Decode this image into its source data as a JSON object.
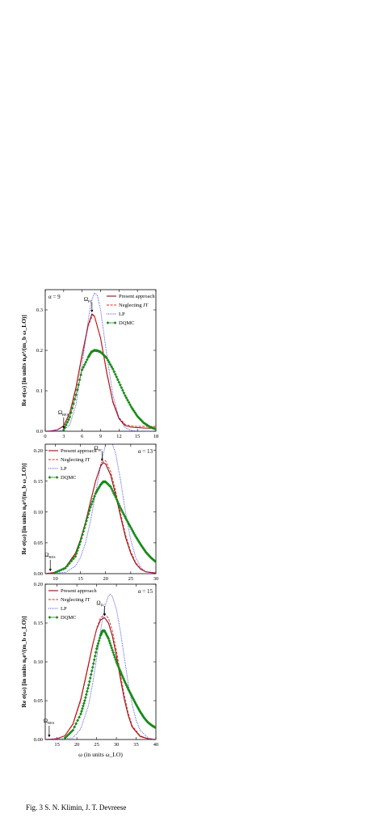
{
  "caption": "Fig. 3    S. N. Klimin, J. T. Devreese",
  "xlabel_shared": "ω (in units ω_LO)",
  "ylabel_shared": "Re σ(ω) [in units n₀e²/(m_b ω_LO)]",
  "legend_labels": [
    "Present approach",
    "Neglecting JT",
    "LP",
    "DQMC"
  ],
  "colors": {
    "present": "#8b0f14",
    "neglecting": "#e8241c",
    "lp": "#2b2be0",
    "dqmc": "#178a17"
  },
  "chart_data": [
    {
      "type": "line",
      "annotation": "α = 9",
      "xlim": [
        0,
        18
      ],
      "ylim": [
        0,
        0.35
      ],
      "xticks": [
        "0",
        "3",
        "6",
        "9",
        "12",
        "15",
        "18"
      ],
      "yticks": [
        "0.0",
        "0.1",
        "0.2",
        "0.3"
      ],
      "omega_res": 3.0,
      "omega_fc": 7.6,
      "omega_res_label": "Ω_RES",
      "omega_fc_label": "Ω_FC",
      "series": [
        {
          "name": "Present approach",
          "style": "solid",
          "color": "#8b0f14",
          "x": [
            0,
            1,
            2,
            3,
            4,
            5,
            6,
            7,
            7.6,
            8,
            9,
            10,
            11,
            12,
            13,
            14,
            15,
            16,
            18
          ],
          "y": [
            0,
            0.001,
            0.004,
            0.013,
            0.046,
            0.108,
            0.19,
            0.263,
            0.29,
            0.285,
            0.23,
            0.145,
            0.072,
            0.031,
            0.014,
            0.01,
            0.009,
            0.008,
            0.007
          ]
        },
        {
          "name": "Neglecting JT",
          "style": "dashed",
          "color": "#e8241c",
          "x": [
            0,
            1,
            2,
            3,
            4,
            5,
            6,
            7,
            7.7,
            8,
            9,
            10,
            11,
            12,
            13,
            14,
            15,
            16,
            18
          ],
          "y": [
            0,
            0.001,
            0.004,
            0.012,
            0.044,
            0.104,
            0.185,
            0.26,
            0.287,
            0.284,
            0.232,
            0.148,
            0.075,
            0.034,
            0.017,
            0.013,
            0.012,
            0.012,
            0.012
          ]
        },
        {
          "name": "LP",
          "style": "dotted",
          "color": "#2b2be0",
          "x": [
            0,
            2,
            3,
            4,
            5,
            6,
            7,
            7.5,
            8,
            8.5,
            9,
            10,
            11,
            12,
            13,
            14,
            15,
            18
          ],
          "y": [
            0,
            0.001,
            0.003,
            0.016,
            0.065,
            0.165,
            0.275,
            0.322,
            0.342,
            0.335,
            0.3,
            0.19,
            0.09,
            0.032,
            0.009,
            0.002,
            0,
            0
          ]
        },
        {
          "name": "DQMC",
          "style": "markers",
          "color": "#178a17",
          "x": [
            3,
            4,
            5,
            6,
            7,
            7.5,
            8,
            8.5,
            9,
            10,
            11,
            12,
            13,
            14,
            15,
            16,
            17,
            18
          ],
          "y": [
            0.003,
            0.035,
            0.09,
            0.152,
            0.183,
            0.196,
            0.2,
            0.199,
            0.196,
            0.181,
            0.154,
            0.121,
            0.088,
            0.06,
            0.037,
            0.021,
            0.011,
            0.005
          ]
        }
      ]
    },
    {
      "type": "line",
      "annotation": "α = 13",
      "xlim": [
        8,
        30
      ],
      "ylim": [
        0,
        0.21
      ],
      "xticks": [
        "10",
        "15",
        "20",
        "25",
        "30"
      ],
      "yticks": [
        "0.00",
        "0.05",
        "0.10",
        "0.15",
        "0.20"
      ],
      "omega_res": 9.0,
      "omega_fc": 19.3,
      "omega_res_label": "Ω_RES",
      "omega_fc_label": "Ω_FC",
      "series": [
        {
          "name": "Present approach",
          "style": "solid",
          "color": "#8b0f14",
          "x": [
            8,
            10,
            12,
            14,
            15,
            16,
            17,
            18,
            19,
            19.5,
            20,
            21,
            22,
            23,
            24,
            25,
            26,
            27,
            28,
            30
          ],
          "y": [
            0,
            0.002,
            0.01,
            0.033,
            0.055,
            0.083,
            0.117,
            0.15,
            0.174,
            0.18,
            0.178,
            0.16,
            0.128,
            0.092,
            0.058,
            0.033,
            0.016,
            0.007,
            0.003,
            0.001
          ]
        },
        {
          "name": "Neglecting JT",
          "style": "dashed",
          "color": "#e8241c",
          "x": [
            8,
            10,
            12,
            14,
            15,
            16,
            17,
            18,
            19,
            19.7,
            20,
            21,
            22,
            23,
            24,
            25,
            26,
            27,
            28,
            30
          ],
          "y": [
            0,
            0.002,
            0.009,
            0.031,
            0.053,
            0.081,
            0.115,
            0.149,
            0.176,
            0.184,
            0.183,
            0.166,
            0.134,
            0.097,
            0.062,
            0.036,
            0.018,
            0.008,
            0.003,
            0.001
          ]
        },
        {
          "name": "LP",
          "style": "dotted",
          "color": "#2b2be0",
          "x": [
            8,
            12,
            14,
            15,
            16,
            17,
            18,
            19,
            20,
            20.5,
            21,
            22,
            23,
            24,
            25,
            26,
            27,
            28,
            30
          ],
          "y": [
            0,
            0.002,
            0.012,
            0.026,
            0.05,
            0.085,
            0.13,
            0.175,
            0.21,
            0.22,
            0.218,
            0.195,
            0.15,
            0.098,
            0.055,
            0.026,
            0.01,
            0.003,
            0
          ]
        },
        {
          "name": "DQMC",
          "style": "markers",
          "color": "#178a17",
          "x": [
            10,
            12,
            14,
            15,
            16,
            17,
            18,
            19,
            19.5,
            20,
            21,
            22,
            23,
            24,
            25,
            26,
            27,
            28,
            29,
            30
          ],
          "y": [
            0.002,
            0.009,
            0.028,
            0.052,
            0.08,
            0.108,
            0.13,
            0.144,
            0.149,
            0.149,
            0.141,
            0.124,
            0.106,
            0.09,
            0.075,
            0.06,
            0.047,
            0.035,
            0.026,
            0.019
          ]
        }
      ]
    },
    {
      "type": "line",
      "annotation": "α = 15",
      "xlim": [
        12,
        40
      ],
      "ylim": [
        0,
        0.2
      ],
      "xticks": [
        "15",
        "20",
        "25",
        "30",
        "35",
        "40"
      ],
      "yticks": [
        "0.00",
        "0.05",
        "0.10",
        "0.15",
        "0.20"
      ],
      "omega_res": 13.0,
      "omega_fc": 27.0,
      "omega_res_label": "Ω_RES",
      "omega_fc_label": "Ω_FC",
      "series": [
        {
          "name": "Present approach",
          "style": "solid",
          "color": "#8b0f14",
          "x": [
            12,
            15,
            17,
            19,
            21,
            23,
            24,
            25,
            26,
            27,
            28,
            29,
            30,
            31,
            32,
            33,
            34,
            36,
            38,
            40
          ],
          "y": [
            0,
            0.001,
            0.005,
            0.02,
            0.052,
            0.098,
            0.122,
            0.142,
            0.154,
            0.157,
            0.15,
            0.133,
            0.108,
            0.079,
            0.052,
            0.031,
            0.016,
            0.004,
            0.001,
            0
          ]
        },
        {
          "name": "Neglecting JT",
          "style": "dashed",
          "color": "#e8241c",
          "x": [
            12,
            15,
            17,
            19,
            21,
            23,
            24,
            25,
            26,
            27.2,
            28,
            29,
            30,
            31,
            32,
            33,
            34,
            36,
            38,
            40
          ],
          "y": [
            0,
            0.001,
            0.005,
            0.019,
            0.05,
            0.096,
            0.121,
            0.143,
            0.157,
            0.161,
            0.156,
            0.14,
            0.115,
            0.085,
            0.057,
            0.034,
            0.018,
            0.005,
            0.001,
            0
          ]
        },
        {
          "name": "LP",
          "style": "dotted",
          "color": "#2b2be0",
          "x": [
            12,
            19,
            21,
            23,
            24,
            25,
            26,
            27,
            28,
            28.5,
            29,
            30,
            31,
            32,
            33,
            34,
            35,
            36,
            38,
            40
          ],
          "y": [
            0,
            0.002,
            0.014,
            0.045,
            0.072,
            0.105,
            0.14,
            0.17,
            0.185,
            0.187,
            0.184,
            0.168,
            0.14,
            0.106,
            0.072,
            0.045,
            0.025,
            0.012,
            0.002,
            0
          ]
        },
        {
          "name": "DQMC",
          "style": "markers",
          "color": "#178a17",
          "x": [
            17,
            19,
            21,
            22,
            23,
            24,
            25,
            26,
            26.5,
            27,
            28,
            29,
            30,
            31,
            32,
            33,
            34,
            35,
            36,
            37,
            38,
            39,
            40
          ],
          "y": [
            0.002,
            0.012,
            0.033,
            0.05,
            0.07,
            0.093,
            0.117,
            0.134,
            0.14,
            0.14,
            0.13,
            0.115,
            0.1,
            0.088,
            0.076,
            0.065,
            0.055,
            0.045,
            0.036,
            0.028,
            0.022,
            0.018,
            0.015
          ]
        }
      ]
    }
  ]
}
